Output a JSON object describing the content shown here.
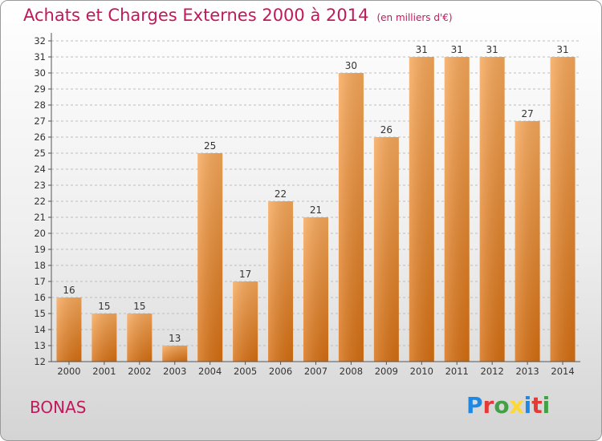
{
  "title": "Achats et Charges Externes 2000 à 2014",
  "unit": "(en milliers d'€)",
  "commune": "BONAS",
  "logo": {
    "letters": [
      "P",
      "r",
      "o",
      "x",
      "i",
      "t",
      "i"
    ],
    "colors": [
      "#1e88e5",
      "#e53935",
      "#43a047",
      "#fdd835",
      "#1e88e5",
      "#e53935",
      "#43a047"
    ]
  },
  "colors": {
    "title": "#c2185b",
    "bar_top": "#f7a85a",
    "bar_bottom": "#d66f12"
  },
  "chart_data": {
    "type": "bar",
    "title": "Achats et Charges Externes 2000 à 2014",
    "xlabel": "",
    "ylabel": "",
    "categories": [
      "2000",
      "2001",
      "2002",
      "2003",
      "2004",
      "2005",
      "2006",
      "2007",
      "2008",
      "2009",
      "2010",
      "2011",
      "2012",
      "2013",
      "2014"
    ],
    "values": [
      16,
      15,
      15,
      13,
      25,
      17,
      22,
      21,
      30,
      26,
      31,
      31,
      31,
      27,
      31
    ],
    "ylim": [
      12,
      32
    ],
    "yticks": [
      12,
      13,
      14,
      15,
      16,
      17,
      18,
      19,
      20,
      21,
      22,
      23,
      24,
      25,
      26,
      27,
      28,
      29,
      30,
      31,
      32
    ],
    "grid": true
  }
}
